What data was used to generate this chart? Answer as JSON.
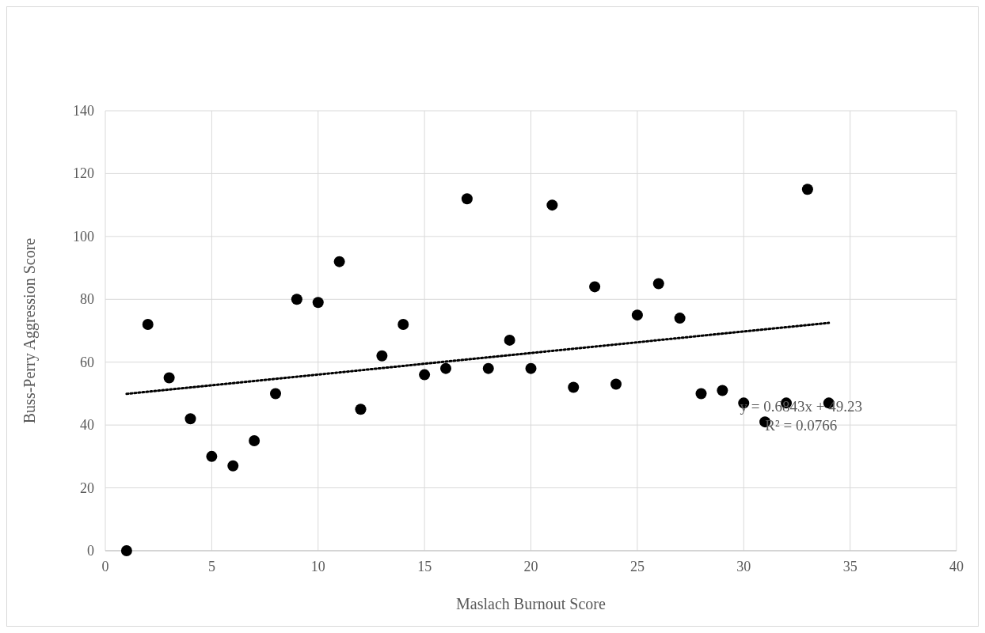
{
  "chart_data": {
    "type": "scatter",
    "xlabel": "Maslach Burnout Score",
    "ylabel": "Buss-Perry Aggression Score",
    "xlim": [
      0,
      40
    ],
    "xticks": [
      0,
      5,
      10,
      15,
      20,
      25,
      30,
      35,
      40
    ],
    "ylim": [
      0,
      140
    ],
    "yticks": [
      0,
      20,
      40,
      60,
      80,
      100,
      120,
      140
    ],
    "grid": true,
    "series": [
      {
        "color": "#000000",
        "marker": "circle",
        "x": [
          1,
          2,
          3,
          4,
          5,
          6,
          7,
          8,
          9,
          10,
          11,
          12,
          13,
          14,
          15,
          16,
          17,
          18,
          19,
          20,
          21,
          22,
          23,
          24,
          25,
          26,
          27,
          28,
          29,
          30,
          31,
          32,
          33,
          34
        ],
        "values": [
          0,
          72,
          55,
          42,
          30,
          27,
          35,
          50,
          80,
          79,
          92,
          45,
          62,
          72,
          56,
          58,
          112,
          58,
          67,
          58,
          110,
          52,
          84,
          53,
          75,
          85,
          74,
          50,
          51,
          47,
          41,
          47,
          115,
          47
        ]
      },
      {
        "type": "line",
        "color": "#000000",
        "marker": "none",
        "line_style": "dotted",
        "x": [
          1,
          34
        ],
        "values": [
          49.9,
          72.5
        ]
      }
    ],
    "annotations": [
      "y = 0.6843x + 49.23",
      "R² = 0.0766"
    ]
  }
}
